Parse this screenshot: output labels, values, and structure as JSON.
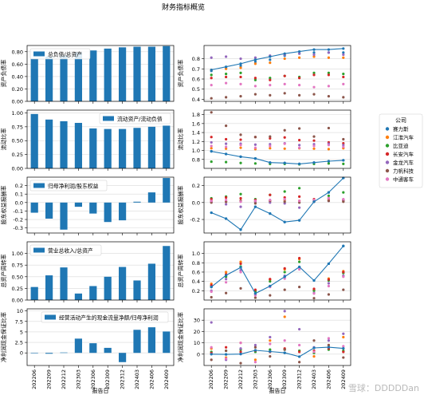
{
  "title": "财务指标概览",
  "xlabel": "报告日",
  "periods": [
    "202206",
    "202209",
    "202212",
    "202303",
    "202306",
    "202309",
    "202312",
    "202403",
    "202406",
    "202409"
  ],
  "legend_title": "公司",
  "watermark": "雪球：DDDDDan",
  "colors": {
    "bar": "#1f77b4",
    "line": "#1f77b4",
    "grid": "#d9d9d9",
    "axis": "#000000"
  },
  "companies": [
    {
      "name": "赛力斯",
      "color": "#1f77b4"
    },
    {
      "name": "江淮汽车",
      "color": "#ff7f0e"
    },
    {
      "name": "比亚迪",
      "color": "#2ca02c"
    },
    {
      "name": "长安汽车",
      "color": "#d62728"
    },
    {
      "name": "金龙汽车",
      "color": "#9467bd"
    },
    {
      "name": "力帆科技",
      "color": "#8c564b"
    },
    {
      "name": "中通客车",
      "color": "#e377c2"
    }
  ],
  "chart_data": [
    {
      "type": "bar",
      "ylabel": "资产负债率",
      "legend": "总负债/总资产",
      "ylim": [
        0,
        0.9
      ],
      "yticks": [
        0,
        0.2,
        0.4,
        0.6,
        0.8
      ],
      "ytick_labels": [
        "0.00",
        "0.20",
        "0.40",
        "0.60",
        "0.80"
      ],
      "values": [
        0.69,
        0.72,
        0.74,
        0.79,
        0.82,
        0.85,
        0.87,
        0.88,
        0.88,
        0.89
      ]
    },
    {
      "type": "scatter+line",
      "ylabel": "资产负债率",
      "ylim": [
        0.38,
        0.93
      ],
      "yticks": [
        0.4,
        0.5,
        0.6,
        0.7,
        0.8
      ],
      "ytick_labels": [
        "0.4",
        "0.5",
        "0.6",
        "0.7",
        "0.8"
      ],
      "line": [
        0.69,
        0.72,
        0.75,
        0.79,
        0.82,
        0.85,
        0.87,
        0.89,
        0.89,
        0.9
      ],
      "points": [
        [
          0.68,
          0.71,
          0.73,
          0.77,
          0.79,
          0.83,
          0.85,
          0.86,
          0.86,
          0.86
        ],
        [
          0.69,
          0.7,
          0.71,
          0.75,
          0.76,
          0.8,
          0.81,
          0.82,
          0.81,
          0.81
        ],
        [
          0.64,
          0.65,
          0.66,
          0.59,
          0.61,
          0.63,
          0.62,
          0.66,
          0.66,
          0.65
        ],
        [
          0.61,
          0.62,
          0.62,
          0.61,
          0.59,
          0.63,
          0.61,
          0.64,
          0.64,
          0.62
        ],
        [
          0.81,
          0.82,
          0.8,
          0.81,
          0.83,
          0.84,
          0.85,
          0.84,
          0.86,
          0.84
        ],
        [
          0.41,
          0.42,
          0.43,
          0.45,
          0.44,
          0.46,
          0.44,
          0.45,
          0.43,
          0.42
        ],
        [
          0.54,
          0.56,
          0.55,
          0.53,
          0.54,
          0.55,
          0.54,
          0.52,
          0.53,
          0.55
        ]
      ]
    },
    {
      "type": "bar",
      "ylabel": "流动比率",
      "legend": "流动资产/流动负债",
      "ylim": [
        0,
        1.05
      ],
      "yticks": [
        0,
        0.25,
        0.5,
        0.75,
        1.0
      ],
      "ytick_labels": [
        "0.00",
        "0.25",
        "0.50",
        "0.75",
        "1.00"
      ],
      "values": [
        0.98,
        0.88,
        0.85,
        0.82,
        0.72,
        0.71,
        0.71,
        0.73,
        0.75,
        0.77
      ]
    },
    {
      "type": "scatter+line",
      "ylabel": "流动比率",
      "ylim": [
        0.6,
        1.9
      ],
      "yticks": [
        0.8,
        1.0,
        1.2,
        1.4,
        1.6,
        1.8
      ],
      "ytick_labels": [
        "0.8",
        "1.0",
        "1.2",
        "1.4",
        "1.6",
        "1.8"
      ],
      "line": [
        0.98,
        0.92,
        0.86,
        0.82,
        0.73,
        0.72,
        0.7,
        0.73,
        0.76,
        0.78
      ],
      "points": [
        [
          0.98,
          0.92,
          0.86,
          0.82,
          0.73,
          0.72,
          0.7,
          0.73,
          0.76,
          0.78
        ],
        [
          1.05,
          1.04,
          1.06,
          1.03,
          1.05,
          1.04,
          1.05,
          1.04,
          1.03,
          1.05
        ],
        [
          0.75,
          0.74,
          0.72,
          0.71,
          0.7,
          0.7,
          0.69,
          0.7,
          0.71,
          0.7
        ],
        [
          1.3,
          1.25,
          1.24,
          1.3,
          1.27,
          1.29,
          1.23,
          1.22,
          1.18,
          1.16
        ],
        [
          1.18,
          1.15,
          1.15,
          1.13,
          1.14,
          1.16,
          1.12,
          1.14,
          1.15,
          1.12
        ],
        [
          1.85,
          1.55,
          1.35,
          1.3,
          1.31,
          1.45,
          1.49,
          1.31,
          1.5,
          1.25
        ],
        [
          1.1,
          1.08,
          1.12,
          1.06,
          1.1,
          1.15,
          1.06,
          1.1,
          1.12,
          1.08
        ]
      ]
    },
    {
      "type": "bar",
      "ylabel": "股东权益报酬率",
      "legend": "归母净利润/股东权益",
      "ylim": [
        -0.36,
        0.3
      ],
      "yticks": [
        -0.3,
        -0.2,
        -0.1,
        0,
        0.1,
        0.2
      ],
      "ytick_labels": [
        "-0.3",
        "-0.2",
        "-0.1",
        "0.0",
        "0.1",
        "0.2"
      ],
      "values": [
        -0.12,
        -0.19,
        -0.32,
        -0.05,
        -0.13,
        -0.23,
        -0.21,
        0.01,
        0.12,
        0.29
      ]
    },
    {
      "type": "scatter+line",
      "ylabel": "股东权益报酬率",
      "ylim": [
        -0.36,
        0.3
      ],
      "yticks": [
        -0.2,
        0,
        0.2
      ],
      "ytick_labels": [
        "-0.2",
        "0.0",
        "0.2"
      ],
      "line": [
        -0.12,
        -0.19,
        -0.32,
        -0.05,
        -0.13,
        -0.23,
        -0.21,
        0.01,
        0.12,
        0.29
      ],
      "points": [
        [
          -0.12,
          -0.19,
          -0.32,
          -0.05,
          -0.13,
          -0.23,
          -0.21,
          0.01,
          0.12,
          0.29
        ],
        [
          0.02,
          0.01,
          0.02,
          0.01,
          0.02,
          0.03,
          0.02,
          0.02,
          0.03,
          0.02
        ],
        [
          0.05,
          0.07,
          0.1,
          0.04,
          0.09,
          0.13,
          0.17,
          0.03,
          0.08,
          0.12
        ],
        [
          0.04,
          0.06,
          0.05,
          0.03,
          0.09,
          0.06,
          0.07,
          0.04,
          0.05,
          0.03
        ],
        [
          0.01,
          -0.02,
          -0.05,
          0.01,
          0.0,
          -0.01,
          -0.06,
          0.01,
          0.02,
          0.03
        ],
        [
          0.0,
          0.01,
          0.02,
          -0.01,
          0.02,
          0.01,
          0.0,
          0.01,
          0.02,
          0.01
        ],
        [
          0.02,
          0.03,
          0.01,
          0.02,
          0.03,
          0.04,
          0.02,
          0.03,
          0.05,
          0.04
        ]
      ]
    },
    {
      "type": "bar",
      "ylabel": "总资产周转率",
      "legend": "营业总收入/总资产",
      "ylim": [
        0,
        1.25
      ],
      "yticks": [
        0,
        0.25,
        0.5,
        0.75,
        1.0
      ],
      "ytick_labels": [
        "0.00",
        "0.25",
        "0.50",
        "0.75",
        "1.00"
      ],
      "values": [
        0.28,
        0.53,
        0.7,
        0.14,
        0.3,
        0.5,
        0.71,
        0.42,
        0.78,
        1.16
      ]
    },
    {
      "type": "scatter+line",
      "ylabel": "总资产周转率",
      "ylim": [
        0,
        1.25
      ],
      "yticks": [
        0.2,
        0.4,
        0.6,
        0.8,
        1.0
      ],
      "ytick_labels": [
        "0.2",
        "0.4",
        "0.6",
        "0.8",
        "1.0"
      ],
      "line": [
        0.28,
        0.53,
        0.7,
        0.14,
        0.3,
        0.5,
        0.71,
        0.42,
        0.78,
        1.16
      ],
      "points": [
        [
          0.28,
          0.53,
          0.7,
          0.14,
          0.3,
          0.5,
          0.71,
          0.42,
          0.78,
          1.16
        ],
        [
          0.35,
          0.6,
          0.82,
          0.2,
          0.44,
          0.66,
          0.88,
          0.22,
          0.46,
          0.62
        ],
        [
          0.3,
          0.5,
          0.72,
          0.18,
          0.4,
          0.6,
          0.82,
          0.2,
          0.42,
          0.58
        ],
        [
          0.32,
          0.55,
          0.78,
          0.22,
          0.45,
          0.68,
          0.9,
          0.24,
          0.44,
          0.6
        ],
        [
          0.2,
          0.45,
          0.64,
          0.12,
          0.3,
          0.52,
          0.7,
          0.15,
          0.36,
          0.52
        ],
        [
          0.06,
          0.15,
          0.25,
          0.05,
          0.1,
          0.22,
          0.28,
          0.04,
          0.12,
          0.22
        ],
        [
          0.18,
          0.38,
          0.6,
          0.1,
          0.28,
          0.46,
          0.66,
          0.14,
          0.3,
          0.5
        ]
      ]
    },
    {
      "type": "bar",
      "ylabel": "净利润现金保证比率",
      "legend": "经营活动产生的现金流量净额/归母净利润",
      "ylim": [
        -3,
        10.5
      ],
      "yticks": [
        0,
        2.5,
        5,
        7.5,
        10
      ],
      "ytick_labels": [
        "0",
        "2.5",
        "5",
        "7.5",
        "10"
      ],
      "values": [
        0.0,
        -0.2,
        0.1,
        3.4,
        2.3,
        1.2,
        -2.2,
        5.5,
        6.1,
        5.1
      ]
    },
    {
      "type": "scatter+line",
      "ylabel": "净利润现金保证比率",
      "ylim": [
        -10,
        40
      ],
      "yticks": [
        0,
        10,
        20,
        30
      ],
      "ytick_labels": [
        "0",
        "10",
        "20",
        "30"
      ],
      "line": [
        0.0,
        -0.2,
        0.1,
        3.4,
        2.3,
        1.2,
        -2.2,
        5.5,
        6.1,
        5.1
      ],
      "points": [
        [
          0.0,
          -0.2,
          0.1,
          3.4,
          2.3,
          1.2,
          -2.2,
          5.5,
          6.1,
          5.1
        ],
        [
          5.0,
          -3.0,
          10.0,
          -5.0,
          12.0,
          33.0,
          3.0,
          -2.0,
          8.0,
          15.0
        ],
        [
          2.0,
          3.0,
          4.0,
          2.0,
          4.0,
          4.0,
          3.0,
          1.0,
          4.0,
          3.0
        ],
        [
          1.0,
          6.0,
          2.0,
          3.0,
          2.0,
          5.0,
          2.0,
          3.0,
          5.0,
          2.0
        ],
        [
          28.0,
          -5.0,
          5.0,
          8.0,
          15.0,
          38.0,
          22.0,
          6.0,
          12.0,
          18.0
        ],
        [
          -5.0,
          3.0,
          -8.0,
          6.0,
          -2.0,
          4.0,
          -7.0,
          12.0,
          8.0,
          -3.0
        ],
        [
          6.0,
          -4.0,
          10.0,
          -7.0,
          9.0,
          12.0,
          8.0,
          2.0,
          14.0,
          7.0
        ]
      ]
    }
  ]
}
